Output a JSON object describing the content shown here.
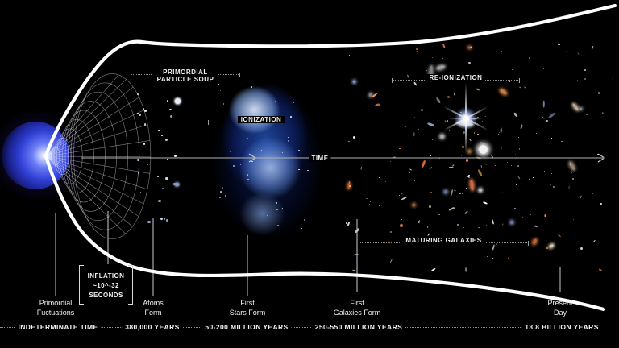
{
  "diagram": {
    "region_labels": {
      "particle_soup_line1": "PRIMORDIAL",
      "particle_soup_line2": "PARTICLE SOUP",
      "ionization": "IONIZATION",
      "reionization": "RE-IONIZATION",
      "maturing_galaxies": "MATURING GALAXIES",
      "time_axis": "TIME"
    },
    "inflation": {
      "line1": "INFLATION",
      "line2": "~10^-32",
      "line3": "SECONDS"
    },
    "stages": [
      {
        "line1": "Primordial",
        "line2": "Fuctuations",
        "time": "INDETERMINATE TIME"
      },
      {
        "line1": "Atoms",
        "line2": "Form",
        "time": "380,000 YEARS"
      },
      {
        "line1": "First",
        "line2": "Stars Form",
        "time": "50-200 MILLION YEARS"
      },
      {
        "line1": "First",
        "line2": "Galaxies Form",
        "time": "250-550 MILLION YEARS"
      },
      {
        "line1": "Present",
        "line2": "Day",
        "time": "13.8 BILLION YEARS"
      }
    ],
    "colors": {
      "background": "#000000",
      "curve": "#ffffff",
      "text": "#f2f2f2",
      "dotted_rule": "#8d8d8d",
      "big_bang_blue": "#3140d6",
      "nebula_blue": "#3a69e1",
      "galaxy_warm": "#e08a4a"
    }
  }
}
